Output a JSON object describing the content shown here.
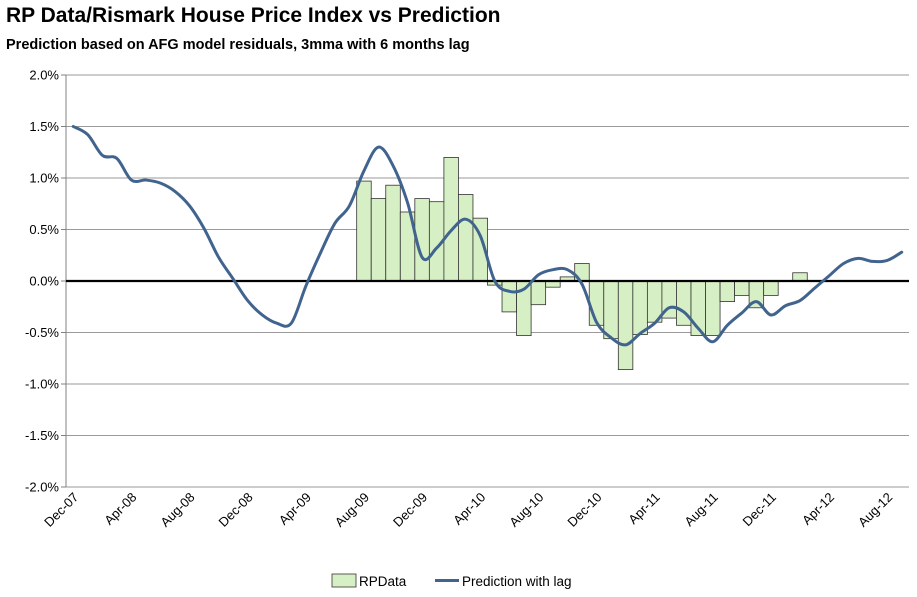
{
  "chart_data": {
    "type": "bar",
    "title": "RP Data/Rismark House Price Index vs Prediction",
    "subtitle": "Prediction based on AFG model residuals, 3mma with 6 months lag",
    "xlabel": "",
    "ylabel": "",
    "ylim": [
      -2.0,
      2.0
    ],
    "y_ticks": [
      2.0,
      1.5,
      1.0,
      0.5,
      0.0,
      -0.5,
      -1.0,
      -1.5,
      -2.0
    ],
    "y_tick_labels": [
      "2.0%",
      "1.5%",
      "1.0%",
      "0.5%",
      "0.0%",
      "-0.5%",
      "-1.0%",
      "-1.5%",
      "-2.0%"
    ],
    "x_tick_labels": [
      {
        "index": 0,
        "label": "Dec-07"
      },
      {
        "index": 4,
        "label": "Apr-08"
      },
      {
        "index": 8,
        "label": "Aug-08"
      },
      {
        "index": 12,
        "label": "Dec-08"
      },
      {
        "index": 16,
        "label": "Apr-09"
      },
      {
        "index": 20,
        "label": "Aug-09"
      },
      {
        "index": 24,
        "label": "Dec-09"
      },
      {
        "index": 28,
        "label": "Apr-10"
      },
      {
        "index": 32,
        "label": "Aug-10"
      },
      {
        "index": 36,
        "label": "Dec-10"
      },
      {
        "index": 40,
        "label": "Apr-11"
      },
      {
        "index": 44,
        "label": "Aug-11"
      },
      {
        "index": 48,
        "label": "Dec-11"
      },
      {
        "index": 52,
        "label": "Apr-12"
      },
      {
        "index": 56,
        "label": "Aug-12"
      }
    ],
    "n_periods": 58,
    "series": [
      {
        "name": "RPData",
        "kind": "bar",
        "start_index": 20,
        "values": [
          0.97,
          0.8,
          0.93,
          0.67,
          0.8,
          0.77,
          1.2,
          0.84,
          0.61,
          -0.04,
          -0.3,
          -0.53,
          -0.23,
          -0.06,
          0.04,
          0.17,
          -0.43,
          -0.56,
          -0.86,
          -0.52,
          -0.4,
          -0.36,
          -0.43,
          -0.53,
          -0.53,
          -0.2,
          -0.14,
          -0.26,
          -0.14,
          0.0,
          0.08
        ]
      },
      {
        "name": "Prediction with lag",
        "kind": "line",
        "start_index": 0,
        "values": [
          1.5,
          1.42,
          1.22,
          1.19,
          0.98,
          0.98,
          0.95,
          0.87,
          0.73,
          0.51,
          0.23,
          0.02,
          -0.19,
          -0.33,
          -0.41,
          -0.41,
          -0.05,
          0.27,
          0.56,
          0.73,
          1.07,
          1.3,
          1.12,
          0.76,
          0.23,
          0.32,
          0.49,
          0.6,
          0.44,
          0.0,
          -0.1,
          -0.08,
          0.06,
          0.11,
          0.11,
          -0.03,
          -0.4,
          -0.55,
          -0.62,
          -0.51,
          -0.41,
          -0.26,
          -0.3,
          -0.46,
          -0.59,
          -0.43,
          -0.31,
          -0.2,
          -0.33,
          -0.24,
          -0.19,
          -0.07,
          0.05,
          0.17,
          0.22,
          0.19,
          0.2,
          0.28
        ]
      }
    ],
    "colors": {
      "bar_fill": "#d7efc4",
      "bar_stroke": "#333333",
      "line": "#41648f",
      "grid": "#9a9a9a",
      "zero_line": "#000000"
    },
    "legend": {
      "position": "bottom",
      "items": [
        "RPData",
        "Prediction with lag"
      ]
    }
  }
}
